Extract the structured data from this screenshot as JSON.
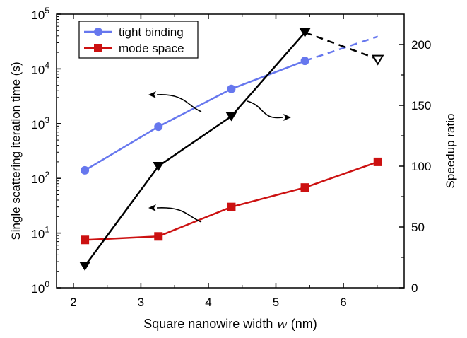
{
  "chart_data": {
    "type": "line",
    "xlabel_prefix": "Square nanowire width ",
    "xlabel_var": "w",
    "xlabel_suffix": " (nm)",
    "ylabel": "Single scattering iteration time (s)",
    "y2label": "Speedup ratio",
    "xlim": [
      1.75,
      6.9
    ],
    "ylim_log": [
      0,
      5
    ],
    "y_scale": "log",
    "y2lim": [
      0,
      225
    ],
    "x_ticks": [
      2,
      3,
      4,
      5,
      6
    ],
    "y_ticks_exp": [
      0,
      1,
      2,
      3,
      4,
      5
    ],
    "y_tick_base": "10",
    "y2_ticks": [
      0,
      50,
      100,
      150,
      200
    ],
    "legend_position": "top-left",
    "grid": false,
    "series": [
      {
        "name": "tight binding",
        "axis": "left",
        "color": "#6677EE",
        "marker": "circle",
        "x": [
          2.17,
          3.26,
          4.34,
          5.43
        ],
        "y": [
          140,
          880,
          4300,
          14000
        ],
        "extrapolated": {
          "x": [
            5.43,
            6.51
          ],
          "y": [
            14000,
            39000
          ]
        }
      },
      {
        "name": "mode space",
        "axis": "left",
        "color": "#CC1111",
        "marker": "square",
        "x": [
          2.17,
          3.26,
          4.34,
          5.43,
          6.51
        ],
        "y": [
          7.5,
          8.7,
          30,
          68,
          200
        ]
      },
      {
        "axis": "right",
        "color": "#000000",
        "marker": "triangle-down",
        "x": [
          2.17,
          3.26,
          4.34,
          5.43
        ],
        "y": [
          18,
          100,
          141,
          210
        ],
        "extrapolated": {
          "x": [
            5.43,
            6.51
          ],
          "y": [
            210,
            188
          ],
          "marker": "triangle-down-open"
        }
      }
    ]
  }
}
